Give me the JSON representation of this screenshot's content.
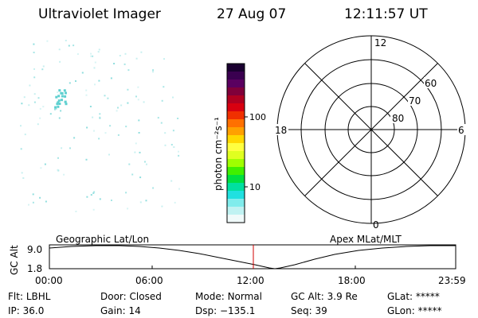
{
  "header": {
    "title": "Ultraviolet Imager",
    "date": "27 Aug 07",
    "time": "12:11:57 UT"
  },
  "colorbar": {
    "unit_label": "photon cm⁻²s⁻¹",
    "ticks": [
      "100",
      "10"
    ],
    "colors": [
      "#1a0030",
      "#3a0050",
      "#5a0060",
      "#80003a",
      "#b00020",
      "#d80010",
      "#f03000",
      "#ff7000",
      "#ffa000",
      "#ffd800",
      "#ffff40",
      "#e0ff20",
      "#a0ff00",
      "#40f000",
      "#00e040",
      "#00e0a0",
      "#20e0e0",
      "#80ecec",
      "#c0f2f2",
      "#f0fafa"
    ]
  },
  "polar": {
    "mlt_labels": {
      "top": "12",
      "left": "18",
      "right": "6",
      "bottom": "0"
    },
    "lat_labels": [
      "60",
      "70",
      "80"
    ]
  },
  "timeline": {
    "left_label": "Geographic Lat/Lon",
    "right_label": "Apex MLat/MLT",
    "axis_label": "GC Alt",
    "y_ticks": [
      "9.0",
      "1.8"
    ],
    "x_ticks": [
      "00:00",
      "06:00",
      "12:00",
      "18:00",
      "23:59"
    ]
  },
  "status": {
    "row1": [
      {
        "label": "Flt:",
        "value": "LBHL"
      },
      {
        "label": "Door:",
        "value": "Closed"
      },
      {
        "label": "Mode:",
        "value": "Normal"
      },
      {
        "label": "GC Alt:",
        "value": "3.9 Re"
      },
      {
        "label": "GLat:",
        "value": "*****"
      }
    ],
    "row2": [
      {
        "label": "IP:",
        "value": "36.0"
      },
      {
        "label": "Gain:",
        "value": "14"
      },
      {
        "label": "Dsp:",
        "value": "−135.1"
      },
      {
        "label": "Seq:",
        "value": "39"
      },
      {
        "label": "GLon:",
        "value": "*****"
      }
    ]
  }
}
